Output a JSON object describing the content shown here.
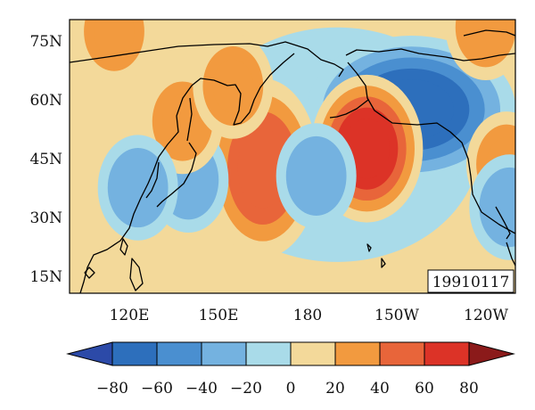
{
  "map": {
    "date_label": "19910117",
    "lat_labels": [
      "75N",
      "60N",
      "45N",
      "30N",
      "15N"
    ],
    "lon_labels": [
      "120E",
      "150E",
      "180",
      "150W",
      "120W"
    ],
    "lat_range": [
      10,
      80
    ],
    "lon_range": [
      100,
      250
    ],
    "field_contour_levels": [
      -80,
      -60,
      -40,
      -20,
      0,
      20,
      40,
      60,
      80
    ],
    "anomaly_centers": [
      {
        "sign": "negative",
        "lat": 57,
        "lon": 215,
        "peak": -75
      },
      {
        "sign": "positive",
        "lat": 47,
        "lon": 200,
        "peak": 65
      },
      {
        "sign": "positive",
        "lat": 42,
        "lon": 165,
        "peak": 48
      },
      {
        "sign": "negative",
        "lat": 39,
        "lon": 140,
        "peak": -38
      },
      {
        "sign": "negative",
        "lat": 40,
        "lon": 183,
        "peak": -33
      },
      {
        "sign": "positive",
        "lat": 54,
        "lon": 138,
        "peak": 30
      },
      {
        "sign": "positive",
        "lat": 63,
        "lon": 155,
        "peak": 25
      },
      {
        "sign": "positive",
        "lat": 43,
        "lon": 247,
        "peak": 35
      },
      {
        "sign": "positive",
        "lat": 77,
        "lon": 115,
        "peak": 25
      },
      {
        "sign": "positive",
        "lat": 78,
        "lon": 240,
        "peak": 35
      },
      {
        "sign": "negative",
        "lat": 37,
        "lon": 123,
        "peak": -22
      },
      {
        "sign": "negative",
        "lat": 32,
        "lon": 248,
        "peak": -25
      }
    ]
  },
  "colorbar": {
    "tick_labels": [
      "−80",
      "−60",
      "−40",
      "−20",
      "0",
      "20",
      "40",
      "60",
      "80"
    ],
    "colors": [
      "#2c4aa8",
      "#2d6fbc",
      "#4a8fd0",
      "#74b2e0",
      "#a9dbe9",
      "#f3d99a",
      "#f29a3f",
      "#e8653a",
      "#dc3327",
      "#8b1a1a"
    ]
  }
}
